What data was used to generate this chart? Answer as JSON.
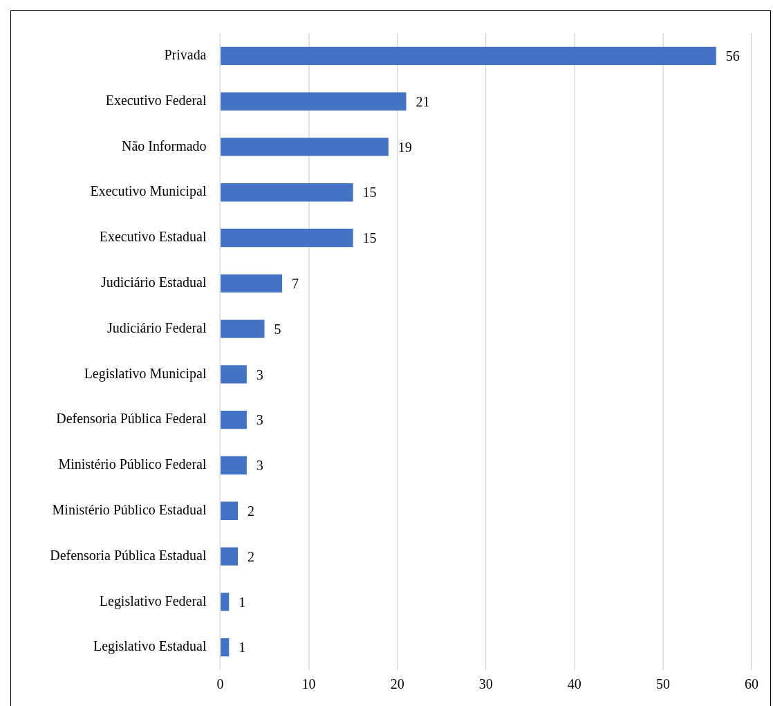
{
  "chart_data": {
    "type": "bar",
    "orientation": "horizontal",
    "categories": [
      "Privada",
      "Executivo Federal",
      "Não Informado",
      "Executivo Municipal",
      "Executivo Estadual",
      "Judiciário Estadual",
      "Judiciário Federal",
      "Legislativo Municipal",
      "Defensoria Pública Federal",
      "Ministério Público Federal",
      "Ministério Público Estadual",
      "Defensoria Pública Estadual",
      "Legislativo Federal",
      "Legislativo Estadual"
    ],
    "values": [
      56,
      21,
      19,
      15,
      15,
      7,
      5,
      3,
      3,
      3,
      2,
      2,
      1,
      1
    ],
    "color": "#4472c4",
    "xlim": [
      0,
      60
    ],
    "xticks": [
      0,
      10,
      20,
      30,
      40,
      50,
      60
    ],
    "grid": "x",
    "data_labels": true,
    "legend": false
  }
}
